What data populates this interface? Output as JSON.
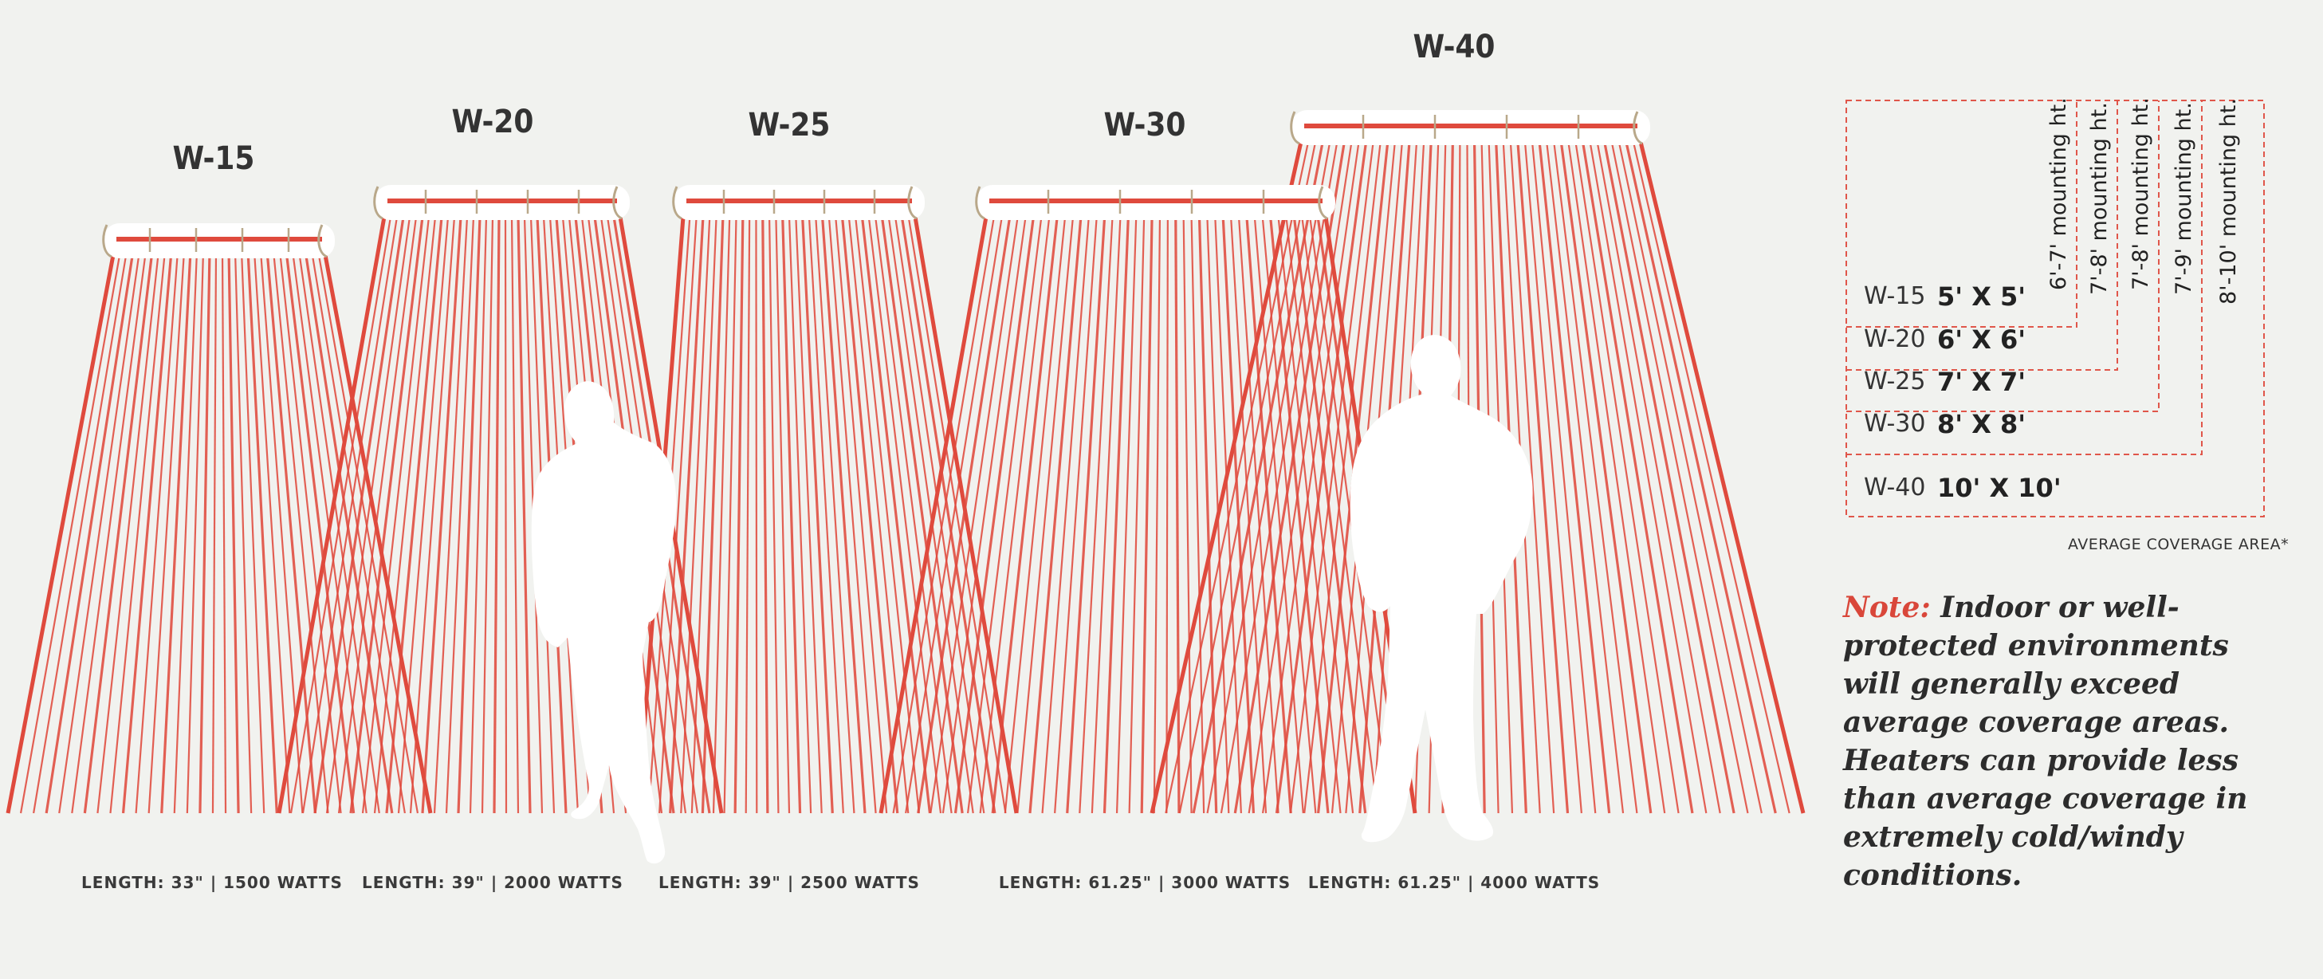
{
  "colors": {
    "background": "#f1f2ef",
    "beam_red": "#df4a3d",
    "legend_dash": "#e0564a",
    "note_accent": "#d9473a",
    "heater_body": "#ffffff"
  },
  "heaters": [
    {
      "model": "W-15",
      "spec": "LENGTH: 33\" | 1500 WATTS"
    },
    {
      "model": "W-20",
      "spec": "LENGTH: 39\" | 2000 WATTS"
    },
    {
      "model": "W-25",
      "spec": "LENGTH: 39\" | 2500 WATTS"
    },
    {
      "model": "W-30",
      "spec": "LENGTH: 61.25\" | 3000 WATTS"
    },
    {
      "model": "W-40",
      "spec": "LENGTH: 61.25\" | 4000 WATTS"
    }
  ],
  "legend": {
    "rows": [
      {
        "model": "W-15",
        "area": "5' X 5'",
        "mounting": "6'-7' mounting ht."
      },
      {
        "model": "W-20",
        "area": "6' X 6'",
        "mounting": "7'-8' mounting ht."
      },
      {
        "model": "W-25",
        "area": "7' X 7'",
        "mounting": "7'-8' mounting ht."
      },
      {
        "model": "W-30",
        "area": "8' X 8'",
        "mounting": "7'-9' mounting ht."
      },
      {
        "model": "W-40",
        "area": "10' X 10'",
        "mounting": "8'-10' mounting ht."
      }
    ],
    "caption": "AVERAGE COVERAGE AREA*"
  },
  "note": {
    "label": "Note:",
    "text": "Indoor or well-protected environments will generally exceed average coverage areas. Heaters can provide less than average coverage in extremely cold/windy conditions."
  }
}
